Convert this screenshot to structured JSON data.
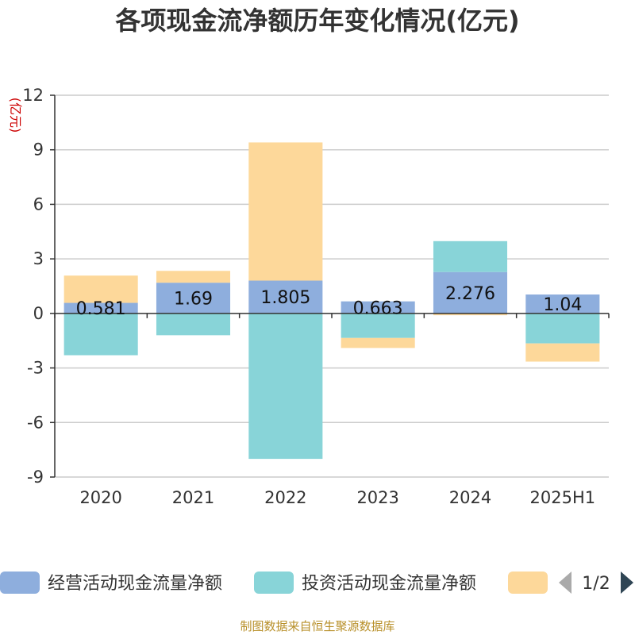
{
  "chart_data": {
    "type": "bar",
    "stacked": true,
    "title": "各项现金流净额历年变化情况(亿元)",
    "ylabel": "(亿元)",
    "categories": [
      "2020",
      "2021",
      "2022",
      "2023",
      "2024",
      "2025H1"
    ],
    "ylim": [
      -9,
      12
    ],
    "yticks": [
      12,
      9,
      6,
      3,
      0,
      -3,
      -6,
      -9
    ],
    "grid": true,
    "series": [
      {
        "name": "经营活动现金流量净额",
        "color": "#8eaedd",
        "values": [
          0.581,
          1.69,
          1.805,
          0.663,
          2.276,
          1.04
        ],
        "labels": [
          "0.581",
          "1.69",
          "1.805",
          "0.663",
          "2.276",
          "1.04"
        ]
      },
      {
        "name": "投资活动现金流量净额",
        "color": "#88d4d8",
        "values": [
          -2.3,
          -1.2,
          -8.0,
          -1.35,
          1.7,
          -1.65
        ]
      },
      {
        "name": "",
        "color": "#fdd89a",
        "values": [
          1.5,
          0.65,
          7.6,
          -0.55,
          -0.1,
          -1.0
        ]
      }
    ],
    "legend": {
      "position": "bottom",
      "page": "1/2"
    }
  },
  "footer": "制图数据来自恒生聚源数据库"
}
